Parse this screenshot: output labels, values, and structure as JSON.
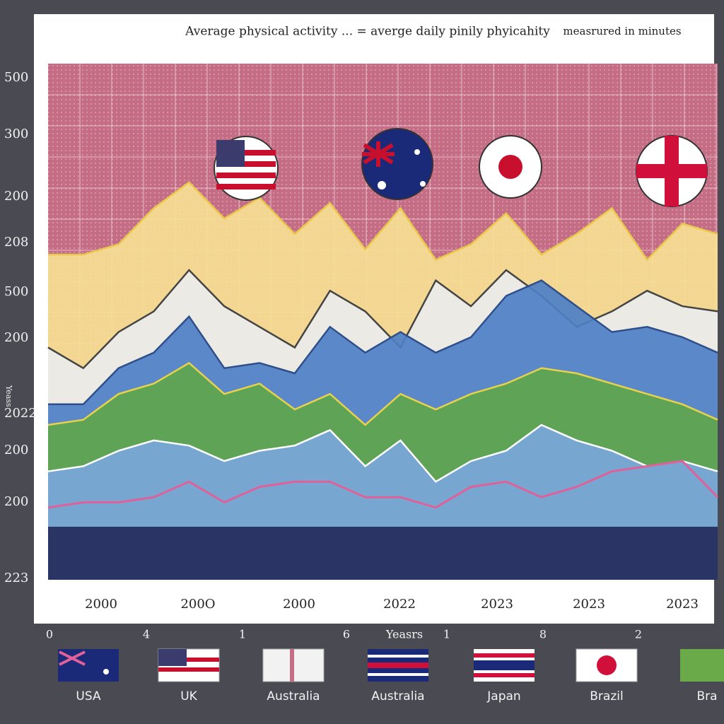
{
  "chart_data": {
    "type": "area",
    "title": "Average physical activity ... = averge daily pinily phyicahity",
    "subtitle": "measrured in minutes",
    "yaxis_labels": [
      "500",
      "300",
      "200",
      "208",
      "500",
      "200",
      "2022",
      "200",
      "200",
      "223"
    ],
    "ylabel": "Yeass",
    "x_labels": [
      "2000",
      "200O",
      "2000",
      "2022",
      "2023",
      "2023",
      "2023"
    ],
    "bottom_labels": [
      "0",
      "4",
      "1",
      "6",
      "Yeasrs",
      "1",
      "8",
      "2"
    ],
    "legend": [
      "USA",
      "UK",
      "Australia",
      "Australia",
      "Japan",
      "Brazil",
      "Bra"
    ],
    "ylim": [
      0,
      100
    ],
    "grid": true,
    "series": [
      {
        "style": "area",
        "color": "#e9c94a",
        "fill": "#f6df93",
        "values": [
          63,
          63,
          65,
          72,
          77,
          70,
          74,
          67,
          73,
          64,
          72,
          62,
          65,
          71,
          63,
          67,
          72,
          62,
          69,
          67
        ]
      },
      {
        "style": "area",
        "color": "#444444",
        "fill": "#ececec",
        "values": [
          45,
          41,
          48,
          52,
          60,
          53,
          49,
          45,
          56,
          52,
          45,
          58,
          53,
          60,
          55,
          49,
          52,
          56,
          53,
          52
        ]
      },
      {
        "style": "area",
        "color": "#2f4f8a",
        "fill": "#4d7fc6",
        "values": [
          34,
          34,
          41,
          44,
          51,
          41,
          42,
          40,
          49,
          44,
          48,
          44,
          47,
          55,
          58,
          53,
          48,
          49,
          47,
          44
        ]
      },
      {
        "style": "area",
        "color": "#e8d24a",
        "fill": "#5ea54c",
        "values": [
          30,
          31,
          36,
          38,
          42,
          36,
          38,
          33,
          36,
          30,
          36,
          33,
          36,
          38,
          41,
          40,
          38,
          36,
          34,
          31
        ]
      },
      {
        "style": "area",
        "color": "#ffffff",
        "fill": "#7aa7da",
        "values": [
          21,
          22,
          25,
          27,
          26,
          23,
          25,
          26,
          29,
          22,
          27,
          19,
          23,
          25,
          30,
          27,
          25,
          22,
          23,
          21
        ]
      },
      {
        "style": "line",
        "color": "#e0609a",
        "values": [
          14,
          15,
          15,
          16,
          19,
          15,
          18,
          19,
          19,
          16,
          16,
          14,
          18,
          19,
          16,
          18,
          21,
          22,
          23,
          16
        ]
      }
    ]
  }
}
